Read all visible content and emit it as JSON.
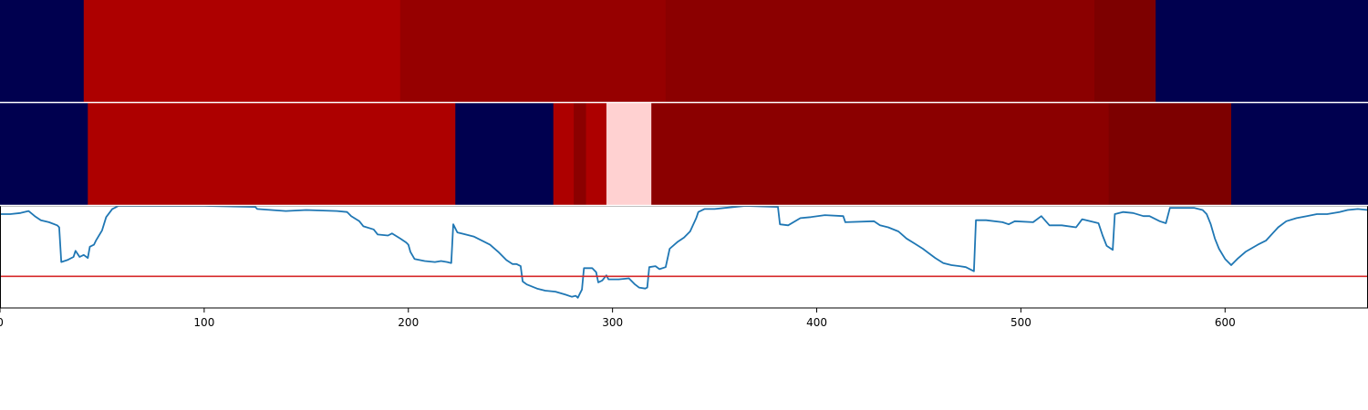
{
  "chart_data": [
    {
      "type": "heatmap",
      "name": "segment-band-top",
      "xlim": [
        0,
        670
      ],
      "segments": [
        {
          "start": 0,
          "end": 41,
          "color": "#00004f"
        },
        {
          "start": 41,
          "end": 196,
          "color": "#ad0000"
        },
        {
          "start": 196,
          "end": 326,
          "color": "#960000"
        },
        {
          "start": 326,
          "end": 536,
          "color": "#8b0000"
        },
        {
          "start": 536,
          "end": 566,
          "color": "#7d0000"
        },
        {
          "start": 566,
          "end": 670,
          "color": "#00004f"
        }
      ]
    },
    {
      "type": "heatmap",
      "name": "segment-band-bottom",
      "xlim": [
        0,
        670
      ],
      "segments": [
        {
          "start": 0,
          "end": 43,
          "color": "#00004f"
        },
        {
          "start": 43,
          "end": 223,
          "color": "#ad0000"
        },
        {
          "start": 223,
          "end": 271,
          "color": "#00004f"
        },
        {
          "start": 271,
          "end": 281,
          "color": "#ad0000"
        },
        {
          "start": 281,
          "end": 287,
          "color": "#8b0000"
        },
        {
          "start": 287,
          "end": 297,
          "color": "#ad0000"
        },
        {
          "start": 297,
          "end": 319,
          "color": "#ffd1d1"
        },
        {
          "start": 319,
          "end": 543,
          "color": "#8b0000"
        },
        {
          "start": 543,
          "end": 603,
          "color": "#7d0000"
        },
        {
          "start": 603,
          "end": 670,
          "color": "#00004f"
        }
      ]
    },
    {
      "type": "line",
      "xlim": [
        0,
        670
      ],
      "ylim": [
        0,
        1
      ],
      "threshold": 0.31,
      "threshold_color": "#d62728",
      "line_color": "#1f77b4",
      "ticks": [
        0,
        100,
        200,
        300,
        400,
        500,
        600
      ],
      "tick_labels": [
        "0",
        "100",
        "200",
        "300",
        "400",
        "500",
        "600"
      ],
      "points": [
        [
          0,
          0.92
        ],
        [
          5,
          0.92
        ],
        [
          10,
          0.93
        ],
        [
          14,
          0.95
        ],
        [
          17,
          0.9
        ],
        [
          20,
          0.86
        ],
        [
          24,
          0.84
        ],
        [
          28,
          0.81
        ],
        [
          29,
          0.79
        ],
        [
          30,
          0.45
        ],
        [
          33,
          0.47
        ],
        [
          36,
          0.5
        ],
        [
          37,
          0.56
        ],
        [
          39,
          0.5
        ],
        [
          41,
          0.52
        ],
        [
          43,
          0.49
        ],
        [
          44,
          0.6
        ],
        [
          46,
          0.62
        ],
        [
          47,
          0.66
        ],
        [
          50,
          0.76
        ],
        [
          52,
          0.89
        ],
        [
          55,
          0.97
        ],
        [
          58,
          1.0
        ],
        [
          100,
          1.0
        ],
        [
          125,
          0.99
        ],
        [
          126,
          0.97
        ],
        [
          140,
          0.95
        ],
        [
          150,
          0.96
        ],
        [
          165,
          0.95
        ],
        [
          170,
          0.94
        ],
        [
          172,
          0.9
        ],
        [
          176,
          0.85
        ],
        [
          178,
          0.8
        ],
        [
          183,
          0.77
        ],
        [
          185,
          0.72
        ],
        [
          190,
          0.71
        ],
        [
          192,
          0.73
        ],
        [
          196,
          0.68
        ],
        [
          199,
          0.64
        ],
        [
          200,
          0.62
        ],
        [
          201,
          0.55
        ],
        [
          203,
          0.48
        ],
        [
          208,
          0.46
        ],
        [
          213,
          0.45
        ],
        [
          216,
          0.46
        ],
        [
          219,
          0.45
        ],
        [
          221,
          0.44
        ],
        [
          222,
          0.82
        ],
        [
          224,
          0.74
        ],
        [
          232,
          0.7
        ],
        [
          236,
          0.66
        ],
        [
          240,
          0.62
        ],
        [
          244,
          0.55
        ],
        [
          248,
          0.47
        ],
        [
          251,
          0.43
        ],
        [
          253,
          0.43
        ],
        [
          255,
          0.41
        ],
        [
          256,
          0.26
        ],
        [
          258,
          0.23
        ],
        [
          263,
          0.19
        ],
        [
          267,
          0.17
        ],
        [
          272,
          0.16
        ],
        [
          277,
          0.13
        ],
        [
          280,
          0.11
        ],
        [
          282,
          0.12
        ],
        [
          283,
          0.1
        ],
        [
          284,
          0.14
        ],
        [
          285,
          0.18
        ],
        [
          286,
          0.39
        ],
        [
          290,
          0.39
        ],
        [
          292,
          0.35
        ],
        [
          293,
          0.25
        ],
        [
          295,
          0.27
        ],
        [
          297,
          0.32
        ],
        [
          298,
          0.28
        ],
        [
          303,
          0.28
        ],
        [
          308,
          0.29
        ],
        [
          311,
          0.23
        ],
        [
          313,
          0.2
        ],
        [
          316,
          0.19
        ],
        [
          317,
          0.2
        ],
        [
          318,
          0.4
        ],
        [
          321,
          0.41
        ],
        [
          323,
          0.38
        ],
        [
          326,
          0.4
        ],
        [
          328,
          0.58
        ],
        [
          332,
          0.65
        ],
        [
          335,
          0.69
        ],
        [
          338,
          0.75
        ],
        [
          341,
          0.88
        ],
        [
          342,
          0.94
        ],
        [
          345,
          0.97
        ],
        [
          350,
          0.97
        ],
        [
          355,
          0.98
        ],
        [
          365,
          1.0
        ],
        [
          381,
          0.99
        ],
        [
          382,
          0.82
        ],
        [
          386,
          0.81
        ],
        [
          392,
          0.88
        ],
        [
          397,
          0.89
        ],
        [
          404,
          0.91
        ],
        [
          413,
          0.9
        ],
        [
          414,
          0.84
        ],
        [
          428,
          0.85
        ],
        [
          431,
          0.81
        ],
        [
          435,
          0.79
        ],
        [
          440,
          0.75
        ],
        [
          444,
          0.68
        ],
        [
          448,
          0.63
        ],
        [
          452,
          0.58
        ],
        [
          458,
          0.49
        ],
        [
          462,
          0.44
        ],
        [
          466,
          0.42
        ],
        [
          470,
          0.41
        ],
        [
          473,
          0.4
        ],
        [
          477,
          0.36
        ],
        [
          478,
          0.86
        ],
        [
          483,
          0.86
        ],
        [
          491,
          0.84
        ],
        [
          494,
          0.82
        ],
        [
          497,
          0.85
        ],
        [
          506,
          0.84
        ],
        [
          510,
          0.9
        ],
        [
          514,
          0.81
        ],
        [
          520,
          0.81
        ],
        [
          527,
          0.79
        ],
        [
          530,
          0.87
        ],
        [
          538,
          0.83
        ],
        [
          540,
          0.71
        ],
        [
          542,
          0.61
        ],
        [
          545,
          0.57
        ],
        [
          546,
          0.92
        ],
        [
          550,
          0.94
        ],
        [
          555,
          0.93
        ],
        [
          560,
          0.9
        ],
        [
          563,
          0.9
        ],
        [
          568,
          0.85
        ],
        [
          571,
          0.83
        ],
        [
          573,
          0.98
        ],
        [
          585,
          0.98
        ],
        [
          589,
          0.96
        ],
        [
          591,
          0.92
        ],
        [
          593,
          0.82
        ],
        [
          595,
          0.68
        ],
        [
          597,
          0.58
        ],
        [
          600,
          0.48
        ],
        [
          603,
          0.42
        ],
        [
          606,
          0.48
        ],
        [
          610,
          0.55
        ],
        [
          616,
          0.62
        ],
        [
          620,
          0.66
        ],
        [
          626,
          0.79
        ],
        [
          630,
          0.85
        ],
        [
          635,
          0.88
        ],
        [
          640,
          0.9
        ],
        [
          645,
          0.92
        ],
        [
          650,
          0.92
        ],
        [
          656,
          0.94
        ],
        [
          660,
          0.96
        ],
        [
          665,
          0.97
        ],
        [
          670,
          0.96
        ]
      ]
    }
  ]
}
